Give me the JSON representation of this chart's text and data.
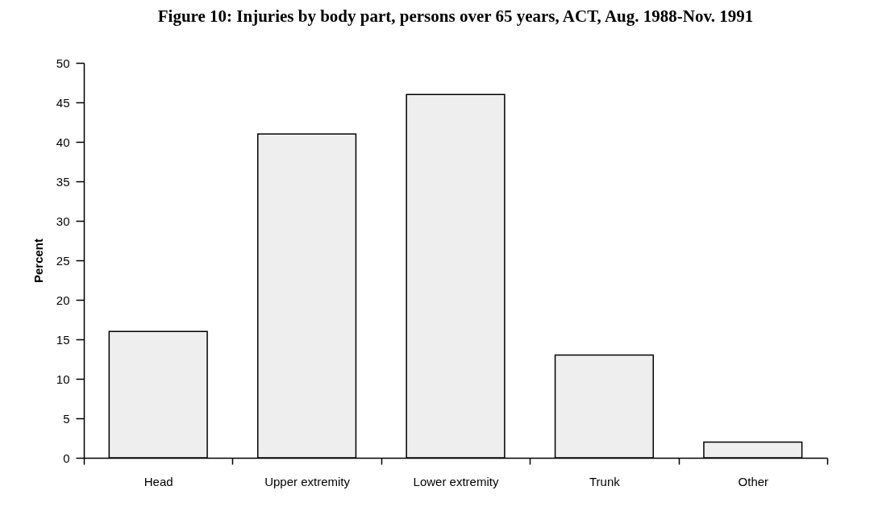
{
  "chart_data": {
    "type": "bar",
    "title": "Figure 10: Injuries by body part, persons over 65 years, ACT, Aug. 1988-Nov. 1991",
    "ylabel": "Percent",
    "categories": [
      "Head",
      "Upper extremity",
      "Lower extremity",
      "Trunk",
      "Other"
    ],
    "values": [
      16,
      41,
      46,
      13,
      2
    ],
    "color": "#eeeeee",
    "ylim": [
      0,
      50
    ],
    "yticks": [
      0,
      5,
      10,
      15,
      20,
      25,
      30,
      35,
      40,
      45,
      50
    ],
    "grid": false
  }
}
